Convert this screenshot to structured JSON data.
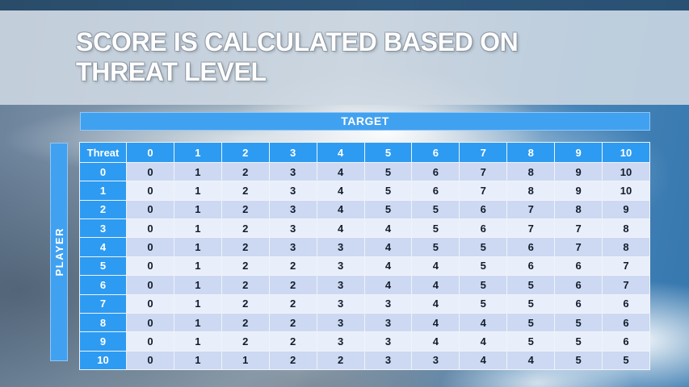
{
  "slide": {
    "title_line1": "SCORE IS CALCULATED BASED ON",
    "title_line2": "THREAT LEVEL"
  },
  "table": {
    "target_label": "TARGET",
    "player_label": "PLAYER",
    "corner_label": "Threat",
    "column_headers": [
      "0",
      "1",
      "2",
      "3",
      "4",
      "5",
      "6",
      "7",
      "8",
      "9",
      "10"
    ],
    "rows": [
      {
        "label": "0",
        "values": [
          "0",
          "1",
          "2",
          "3",
          "4",
          "5",
          "6",
          "7",
          "8",
          "9",
          "10"
        ]
      },
      {
        "label": "1",
        "values": [
          "0",
          "1",
          "2",
          "3",
          "4",
          "5",
          "6",
          "7",
          "8",
          "9",
          "10"
        ]
      },
      {
        "label": "2",
        "values": [
          "0",
          "1",
          "2",
          "3",
          "4",
          "5",
          "5",
          "6",
          "7",
          "8",
          "9"
        ]
      },
      {
        "label": "3",
        "values": [
          "0",
          "1",
          "2",
          "3",
          "4",
          "4",
          "5",
          "6",
          "7",
          "7",
          "8"
        ]
      },
      {
        "label": "4",
        "values": [
          "0",
          "1",
          "2",
          "3",
          "3",
          "4",
          "5",
          "5",
          "6",
          "7",
          "8"
        ]
      },
      {
        "label": "5",
        "values": [
          "0",
          "1",
          "2",
          "2",
          "3",
          "4",
          "4",
          "5",
          "6",
          "6",
          "7"
        ]
      },
      {
        "label": "6",
        "values": [
          "0",
          "1",
          "2",
          "2",
          "3",
          "4",
          "4",
          "5",
          "5",
          "6",
          "7"
        ]
      },
      {
        "label": "7",
        "values": [
          "0",
          "1",
          "2",
          "2",
          "3",
          "3",
          "4",
          "5",
          "5",
          "6",
          "6"
        ]
      },
      {
        "label": "8",
        "values": [
          "0",
          "1",
          "2",
          "2",
          "3",
          "3",
          "4",
          "4",
          "5",
          "5",
          "6"
        ]
      },
      {
        "label": "9",
        "values": [
          "0",
          "1",
          "2",
          "2",
          "3",
          "3",
          "4",
          "4",
          "5",
          "5",
          "6"
        ]
      },
      {
        "label": "10",
        "values": [
          "0",
          "1",
          "1",
          "2",
          "2",
          "3",
          "3",
          "4",
          "4",
          "5",
          "5"
        ]
      }
    ]
  },
  "colors": {
    "header_blue": "#2D9BF1",
    "bar_blue": "#41A1F1",
    "row_shade_dark": "#CDD9F2",
    "row_shade_light": "#E9EEFB",
    "cell_text": "#131C2B",
    "title_text": "#FFFFFF",
    "top_band": "#2A4C69"
  }
}
